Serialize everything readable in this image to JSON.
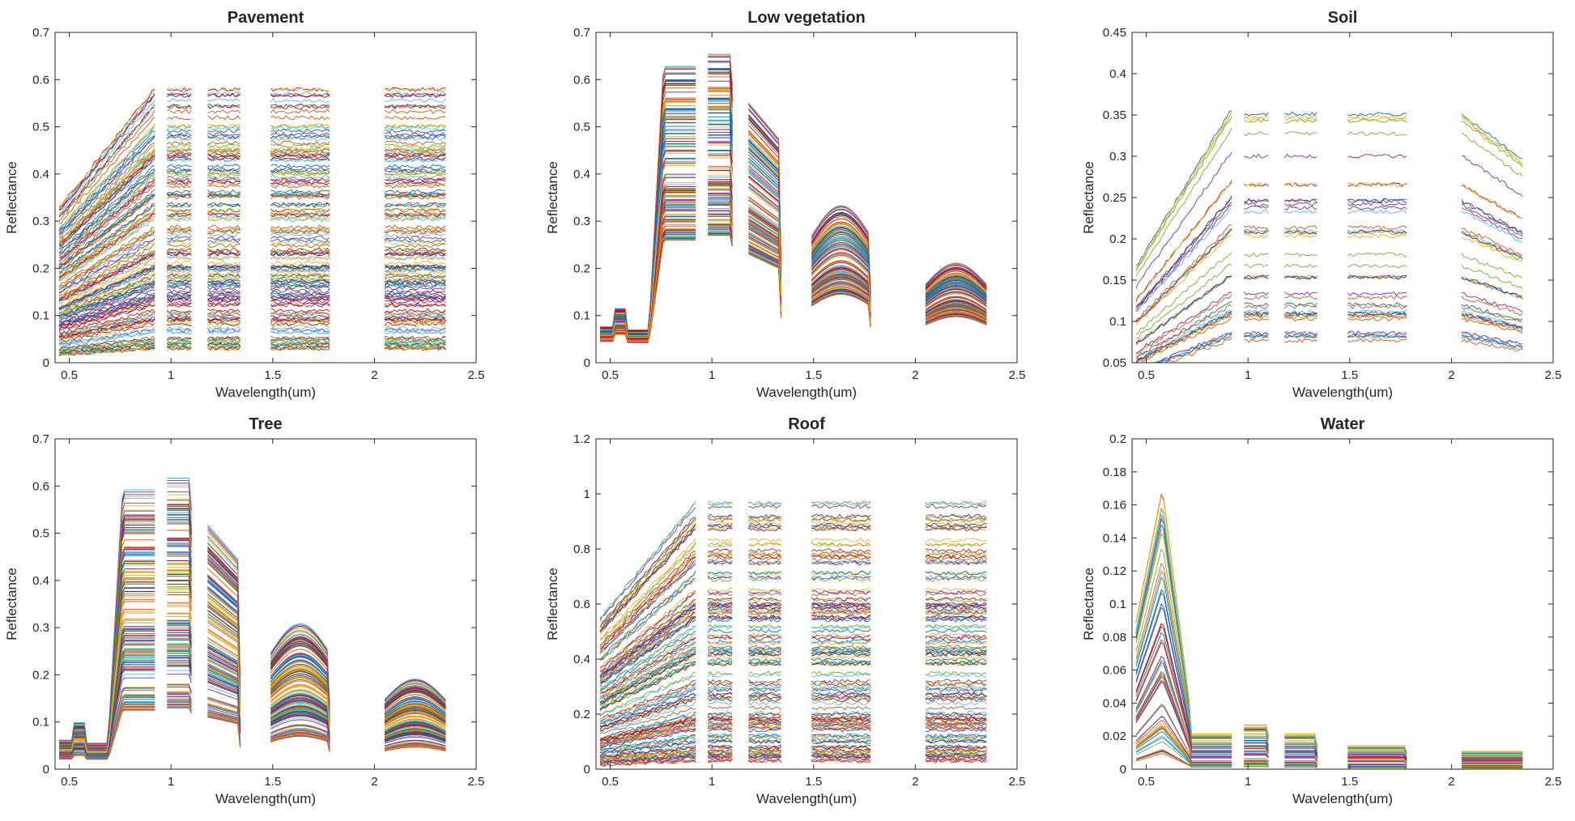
{
  "figure": {
    "xlabel": "Wavelength(um)",
    "ylabel": "Reflectance"
  },
  "colors": [
    "#0072BD",
    "#D95319",
    "#EDB120",
    "#7E2F8E",
    "#77AC30",
    "#4DBEEE",
    "#A2142F"
  ],
  "chart_data": [
    {
      "id": "pavement",
      "type": "line",
      "title": "Pavement",
      "xlabel": "Wavelength(um)",
      "ylabel": "Reflectance",
      "xlim": [
        0.43,
        2.5
      ],
      "ylim": [
        0,
        0.7
      ],
      "xticks": [
        "0.5",
        "1",
        "1.5",
        "2",
        "2.5"
      ],
      "yticks": [
        "0",
        "0.1",
        "0.2",
        "0.3",
        "0.4",
        "0.5",
        "0.6",
        "0.7"
      ],
      "bands": [
        [
          0.45,
          0.92
        ],
        [
          0.98,
          1.1
        ],
        [
          1.18,
          1.34
        ],
        [
          1.49,
          1.78
        ],
        [
          2.05,
          2.35
        ]
      ],
      "series_count": 150,
      "series_profile": "flat",
      "series_range": [
        0.03,
        0.6
      ]
    },
    {
      "id": "low-vegetation",
      "type": "line",
      "title": "Low vegetation",
      "xlabel": "Wavelength(um)",
      "ylabel": "Reflectance",
      "xlim": [
        0.43,
        2.5
      ],
      "ylim": [
        0,
        0.7
      ],
      "xticks": [
        "0.5",
        "1",
        "1.5",
        "2",
        "2.5"
      ],
      "yticks": [
        "0",
        "0.1",
        "0.2",
        "0.3",
        "0.4",
        "0.5",
        "0.6",
        "0.7"
      ],
      "bands": [
        [
          0.45,
          0.92
        ],
        [
          0.98,
          1.1
        ],
        [
          1.18,
          1.34
        ],
        [
          1.49,
          1.78
        ],
        [
          2.05,
          2.35
        ]
      ],
      "series_count": 150,
      "series_profile": "vegetation",
      "series_range": [
        0.25,
        0.65
      ]
    },
    {
      "id": "soil",
      "type": "line",
      "title": "Soil",
      "xlabel": "Wavelength(um)",
      "ylabel": "Reflectance",
      "xlim": [
        0.43,
        2.5
      ],
      "ylim": [
        0.05,
        0.45
      ],
      "xticks": [
        "0.5",
        "1",
        "1.5",
        "2",
        "2.5"
      ],
      "yticks": [
        "0.05",
        "0.1",
        "0.15",
        "0.2",
        "0.25",
        "0.3",
        "0.35",
        "0.4",
        "0.45"
      ],
      "bands": [
        [
          0.45,
          0.92
        ],
        [
          0.98,
          1.1
        ],
        [
          1.18,
          1.34
        ],
        [
          1.49,
          1.78
        ],
        [
          2.05,
          2.35
        ]
      ],
      "series_count": 40,
      "series_profile": "soil",
      "series_range": [
        0.08,
        0.38
      ]
    },
    {
      "id": "tree",
      "type": "line",
      "title": "Tree",
      "xlabel": "Wavelength(um)",
      "ylabel": "Reflectance",
      "xlim": [
        0.43,
        2.5
      ],
      "ylim": [
        0,
        0.7
      ],
      "xticks": [
        "0.5",
        "1",
        "1.5",
        "2",
        "2.5"
      ],
      "yticks": [
        "0",
        "0.1",
        "0.2",
        "0.3",
        "0.4",
        "0.5",
        "0.6",
        "0.7"
      ],
      "bands": [
        [
          0.45,
          0.92
        ],
        [
          0.98,
          1.1
        ],
        [
          1.18,
          1.34
        ],
        [
          1.49,
          1.78
        ],
        [
          2.05,
          2.35
        ]
      ],
      "series_count": 150,
      "series_profile": "vegetation",
      "series_range": [
        0.12,
        0.62
      ]
    },
    {
      "id": "roof",
      "type": "line",
      "title": "Roof",
      "xlabel": "Wavelength(um)",
      "ylabel": "Reflectance",
      "xlim": [
        0.43,
        2.5
      ],
      "ylim": [
        0,
        1.2
      ],
      "xticks": [
        "0.5",
        "1",
        "1.5",
        "2",
        "2.5"
      ],
      "yticks": [
        "0",
        "0.2",
        "0.4",
        "0.6",
        "0.8",
        "1",
        "1.2"
      ],
      "bands": [
        [
          0.45,
          0.92
        ],
        [
          0.98,
          1.1
        ],
        [
          1.18,
          1.34
        ],
        [
          1.49,
          1.78
        ],
        [
          2.05,
          2.35
        ]
      ],
      "series_count": 140,
      "series_profile": "flat",
      "series_range": [
        0.03,
        1.0
      ]
    },
    {
      "id": "water",
      "type": "line",
      "title": "Water",
      "xlabel": "Wavelength(um)",
      "ylabel": "Reflectance",
      "xlim": [
        0.43,
        2.5
      ],
      "ylim": [
        0,
        0.2
      ],
      "xticks": [
        "0.5",
        "1",
        "1.5",
        "2",
        "2.5"
      ],
      "yticks": [
        "0",
        "0.02",
        "0.04",
        "0.06",
        "0.08",
        "0.1",
        "0.12",
        "0.14",
        "0.16",
        "0.18",
        "0.2"
      ],
      "bands": [
        [
          0.45,
          0.92
        ],
        [
          0.98,
          1.1
        ],
        [
          1.18,
          1.34
        ],
        [
          1.49,
          1.78
        ],
        [
          2.05,
          2.35
        ]
      ],
      "series_count": 60,
      "series_profile": "water",
      "series_range": [
        0.01,
        0.18
      ]
    }
  ]
}
